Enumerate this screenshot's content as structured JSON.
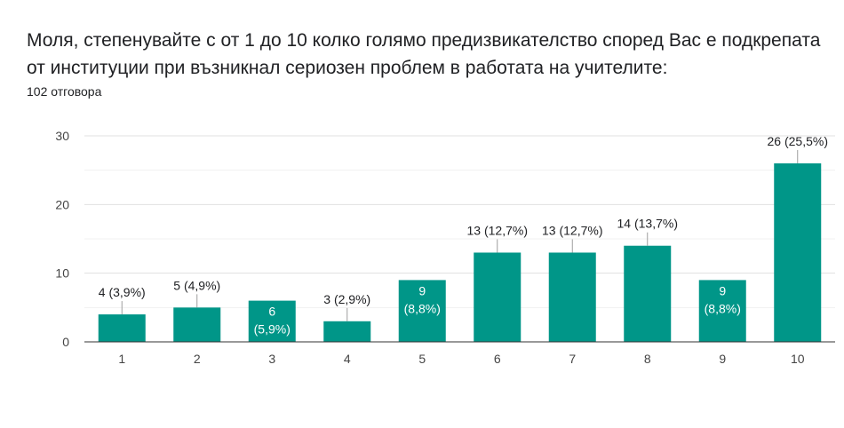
{
  "question": {
    "title": "Моля, степенувайте с от 1 до 10 колко голямо предизвикателство според Вас е подкрепата от институции при възникнал сериозен проблем в работата на учителите:",
    "responses": "102 отговора"
  },
  "chart_data": {
    "type": "bar",
    "title": "",
    "xlabel": "",
    "ylabel": "",
    "ylim": [
      0,
      30
    ],
    "yticks": [
      "0",
      "10",
      "20",
      "30"
    ],
    "grid": true,
    "legend": "none",
    "bar_color": "#009688",
    "categories": [
      "1",
      "2",
      "3",
      "4",
      "5",
      "6",
      "7",
      "8",
      "9",
      "10"
    ],
    "values": [
      4,
      5,
      6,
      3,
      9,
      13,
      13,
      14,
      9,
      26
    ],
    "labels": [
      "4 (3,9%)",
      "5 (4,9%)",
      "6 (5,9%)",
      "3 (2,9%)",
      "9 (8,8%)",
      "13 (12,7%)",
      "13 (12,7%)",
      "14 (13,7%)",
      "9 (8,8%)",
      "26 (25,5%)"
    ]
  }
}
